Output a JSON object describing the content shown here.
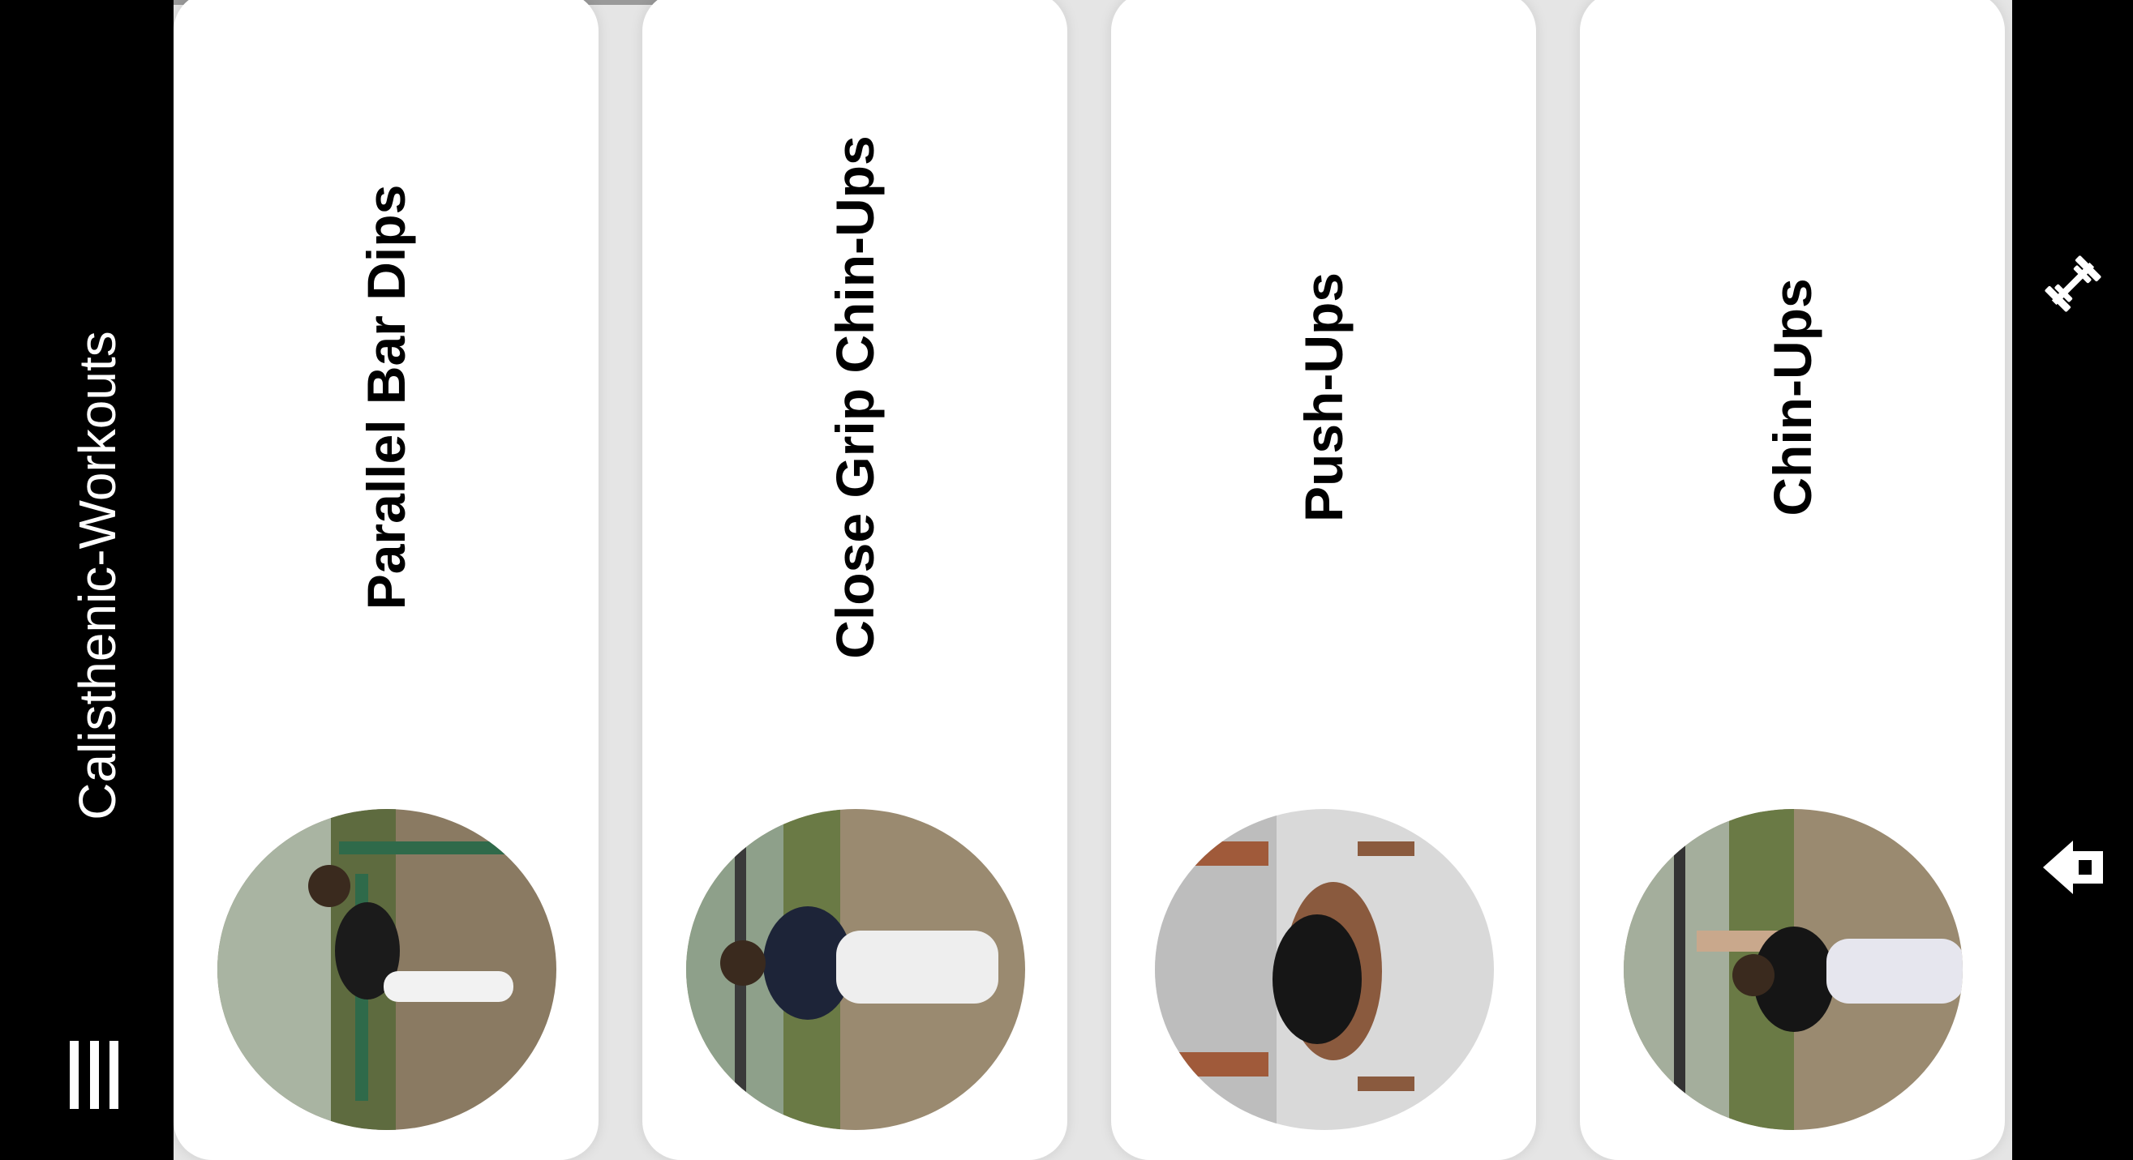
{
  "app": {
    "title": "Calisthenic-Workouts"
  },
  "workouts": [
    {
      "name": "Parallel Bar Dips"
    },
    {
      "name": "Close Grip Chin-Ups"
    },
    {
      "name": "Push-Ups"
    },
    {
      "name": "Chin-Ups"
    }
  ],
  "icons": {
    "menu": "menu-icon",
    "workouts": "dumbbell-icon",
    "home": "home-icon"
  },
  "colors": {
    "appbar": "#000000",
    "card": "#ffffff",
    "background": "#e5e5e5",
    "text": "#000000"
  }
}
